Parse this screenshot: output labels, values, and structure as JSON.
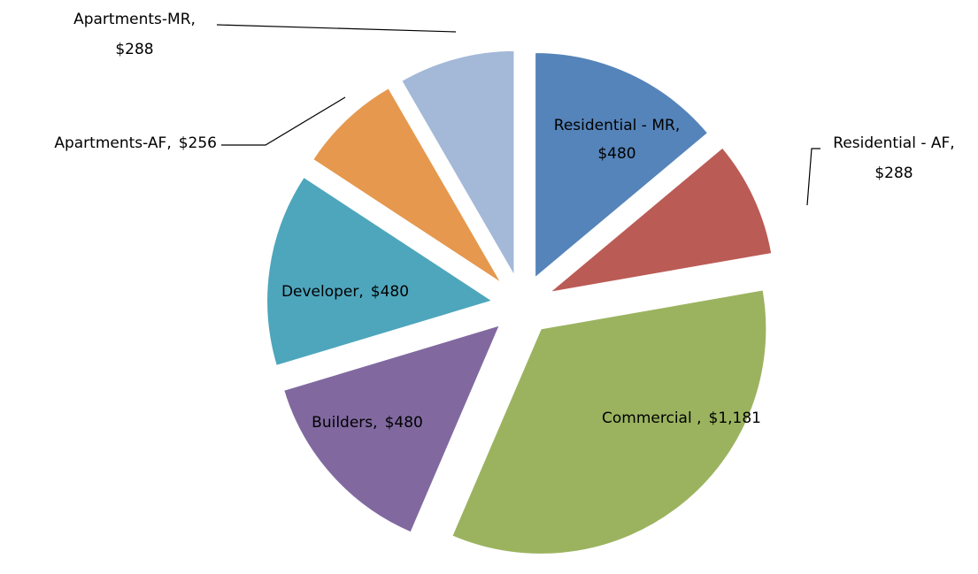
{
  "chart_data": {
    "type": "pie",
    "categories": [
      "Residential - MR,",
      "Residential - AF,",
      "Commercial ,",
      "Builders,",
      "Developer,",
      "Apartments-AF,",
      "Apartments-MR,"
    ],
    "values": [
      480,
      288,
      1181,
      480,
      480,
      256,
      288
    ],
    "value_labels": [
      "$480",
      "$288",
      "$1,181",
      "$480",
      "$480",
      "$256",
      "$288"
    ],
    "colors": [
      "#5584ba",
      "#bb5b55",
      "#9bb35f",
      "#8169a0",
      "#4ea6bc",
      "#e5984e",
      "#a4b8d8"
    ],
    "exploded": true
  }
}
